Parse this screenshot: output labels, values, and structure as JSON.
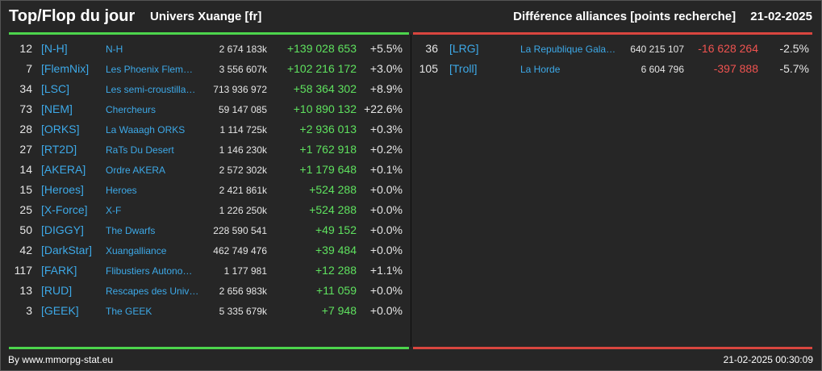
{
  "header": {
    "title": "Top/Flop du jour",
    "universe": "Univers Xuange [fr]",
    "category": "Différence alliances [points recherche]",
    "date": "21-02-2025"
  },
  "top": [
    {
      "rank": "12",
      "tag": "[N-H]",
      "name": "N-H",
      "points": "2 674 183k",
      "diff": "+139 028 653",
      "pct": "+5.5%"
    },
    {
      "rank": "7",
      "tag": "[FlemNix]",
      "name": "Les Phoenix Flem…",
      "points": "3 556 607k",
      "diff": "+102 216 172",
      "pct": "+3.0%"
    },
    {
      "rank": "34",
      "tag": "[LSC]",
      "name": "Les semi-croustilla…",
      "points": "713 936 972",
      "diff": "+58 364 302",
      "pct": "+8.9%"
    },
    {
      "rank": "73",
      "tag": "[NEM]",
      "name": "Chercheurs",
      "points": "59 147 085",
      "diff": "+10 890 132",
      "pct": "+22.6%"
    },
    {
      "rank": "28",
      "tag": "[ORKS]",
      "name": "La Waaagh ORKS",
      "points": "1 114 725k",
      "diff": "+2 936 013",
      "pct": "+0.3%"
    },
    {
      "rank": "27",
      "tag": "[RT2D]",
      "name": "RaTs Du Desert",
      "points": "1 146 230k",
      "diff": "+1 762 918",
      "pct": "+0.2%"
    },
    {
      "rank": "14",
      "tag": "[AKERA]",
      "name": "Ordre AKERA",
      "points": "2 572 302k",
      "diff": "+1 179 648",
      "pct": "+0.1%"
    },
    {
      "rank": "15",
      "tag": "[Heroes]",
      "name": "Heroes",
      "points": "2 421 861k",
      "diff": "+524 288",
      "pct": "+0.0%"
    },
    {
      "rank": "25",
      "tag": "[X-Force]",
      "name": "X-F",
      "points": "1 226 250k",
      "diff": "+524 288",
      "pct": "+0.0%"
    },
    {
      "rank": "50",
      "tag": "[DIGGY]",
      "name": "The Dwarfs",
      "points": "228 590 541",
      "diff": "+49 152",
      "pct": "+0.0%"
    },
    {
      "rank": "42",
      "tag": "[DarkStar]",
      "name": "Xuangalliance",
      "points": "462 749 476",
      "diff": "+39 484",
      "pct": "+0.0%"
    },
    {
      "rank": "117",
      "tag": "[FARK]",
      "name": "Flibustiers Autono…",
      "points": "1 177 981",
      "diff": "+12 288",
      "pct": "+1.1%"
    },
    {
      "rank": "13",
      "tag": "[RUD]",
      "name": "Rescapes des Univ…",
      "points": "2 656 983k",
      "diff": "+11 059",
      "pct": "+0.0%"
    },
    {
      "rank": "3",
      "tag": "[GEEK]",
      "name": "The GEEK",
      "points": "5 335 679k",
      "diff": "+7 948",
      "pct": "+0.0%"
    }
  ],
  "flop": [
    {
      "rank": "36",
      "tag": "[LRG]",
      "name": "La Republique Gala…",
      "points": "640 215 107",
      "diff": "-16 628 264",
      "pct": "-2.5%"
    },
    {
      "rank": "105",
      "tag": "[Troll]",
      "name": "La Horde",
      "points": "6 604 796",
      "diff": "-397 888",
      "pct": "-5.7%"
    }
  ],
  "footer": {
    "credit": "By www.mmorpg-stat.eu",
    "timestamp": "21-02-2025 00:30:09"
  },
  "colors": {
    "background": "#262626",
    "top_accent": "#4cd44c",
    "flop_accent": "#d9463f",
    "link": "#3da9e8",
    "positive": "#5fe25f",
    "negative": "#ef5350"
  }
}
